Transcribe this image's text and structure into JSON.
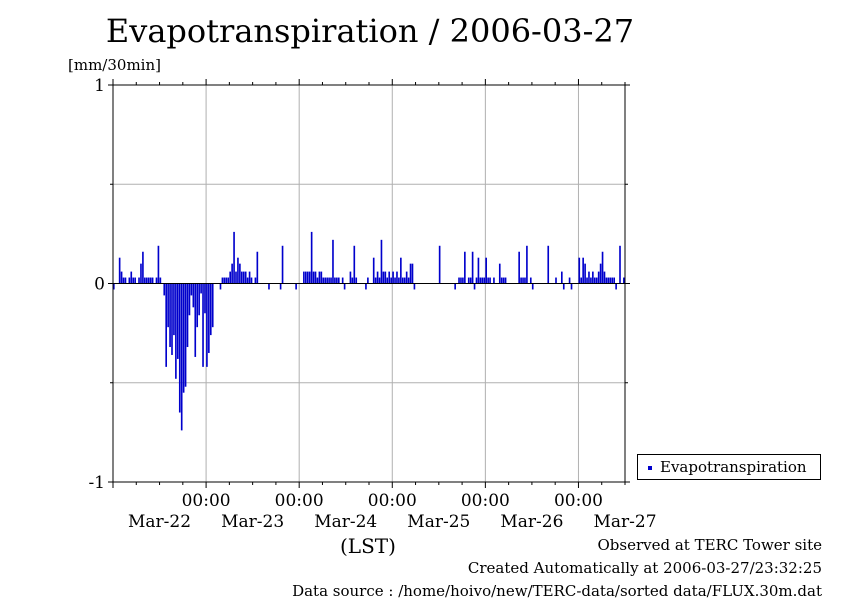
{
  "chart_data": {
    "type": "bar",
    "title": "Evapotranspiration / 2006-03-27",
    "ylabel": "[mm/30min]",
    "xlabel": "(LST)",
    "ylim": [
      -1,
      1
    ],
    "y_ticks": [
      "1",
      "0",
      "-1"
    ],
    "x_time_labels": [
      "00:00",
      "00:00",
      "00:00",
      "00:00",
      "00:00"
    ],
    "x_date_labels": [
      "Mar-22",
      "Mar-23",
      "Mar-24",
      "Mar-25",
      "Mar-26",
      "Mar-27"
    ],
    "grid": true,
    "legend_position": "right",
    "series": [
      {
        "name": "Evapotranspiration",
        "color": "#0000cc",
        "x_start": "2006-03-21 00:00",
        "interval_minutes": 30,
        "values": [
          -0.03,
          0,
          0,
          0.13,
          0.06,
          0.03,
          0.03,
          0,
          0.03,
          0.06,
          0.03,
          0.03,
          0,
          0.03,
          0.1,
          0.16,
          0.03,
          0.03,
          0.03,
          0.03,
          0.03,
          0,
          0.03,
          0.19,
          0.03,
          0,
          -0.06,
          -0.42,
          -0.22,
          -0.32,
          -0.36,
          -0.26,
          -0.48,
          -0.38,
          -0.65,
          -0.74,
          -0.55,
          -0.52,
          -0.32,
          -0.16,
          -0.06,
          -0.12,
          -0.37,
          -0.22,
          -0.16,
          -0.05,
          -0.42,
          -0.15,
          -0.42,
          -0.35,
          -0.26,
          -0.22,
          0,
          0,
          0,
          -0.03,
          0.03,
          0.03,
          0.03,
          0.03,
          0.06,
          0.1,
          0.26,
          0.06,
          0.13,
          0.1,
          0.06,
          0.06,
          0.06,
          0.03,
          0.06,
          0.03,
          0,
          0.03,
          0.16,
          0,
          0,
          0,
          0,
          0,
          -0.03,
          0,
          0,
          0,
          0,
          0,
          -0.03,
          0.19,
          0,
          0,
          0,
          0,
          0,
          0,
          -0.03,
          0,
          0,
          0,
          0.06,
          0.06,
          0.06,
          0.06,
          0.26,
          0.06,
          0.06,
          0.03,
          0.06,
          0.06,
          0.03,
          0.03,
          0.03,
          0.03,
          0.03,
          0.22,
          0.03,
          0.03,
          0.03,
          0,
          0.03,
          -0.03,
          0,
          0,
          0.06,
          0.03,
          0.19,
          0.03,
          0,
          0,
          0,
          0,
          -0.03,
          0.03,
          0,
          0,
          0.13,
          0.03,
          0.06,
          0.03,
          0.22,
          0.06,
          0.06,
          0.03,
          0.06,
          0.03,
          0.06,
          0.03,
          0.06,
          0.03,
          0.13,
          0.03,
          0.03,
          0.06,
          0.03,
          0.1,
          0.1,
          -0.03,
          0,
          0,
          0,
          0,
          0,
          0,
          0,
          0,
          0,
          0,
          0,
          0,
          0.19,
          0,
          0,
          0,
          0,
          0,
          0,
          0,
          -0.03,
          0,
          0.03,
          0.03,
          0.03,
          0.16,
          0,
          0.03,
          0.03,
          0.16,
          -0.03,
          0.03,
          0.13,
          0.03,
          0.03,
          0.03,
          0.13,
          0.03,
          0.03,
          0,
          0.03,
          0,
          0,
          0.1,
          0.03,
          0.03,
          0.03,
          0,
          0,
          0,
          0,
          0,
          0,
          0.16,
          0.03,
          0.03,
          0.03,
          0.19,
          0,
          0.03,
          -0.03,
          0,
          0,
          0,
          0,
          0,
          0,
          0,
          0.19,
          0,
          0,
          0,
          0.03,
          0,
          0,
          0.06,
          -0.03,
          0,
          0,
          0.03,
          -0.03,
          0,
          0,
          0,
          0.13,
          0.03,
          0.13,
          0.1,
          0.03,
          0.06,
          0.03,
          0.06,
          0.03,
          0.03,
          0.06,
          0.1,
          0.16,
          0.06,
          0.03,
          0.03,
          0.03,
          0.03,
          0.03,
          -0.03,
          0,
          0.19,
          0,
          0.03
        ]
      }
    ]
  },
  "footer": {
    "site": "Observed at TERC Tower site",
    "created": "Created Automatically at 2006-03-27/23:32:25",
    "source": "Data source : /home/hoivo/new/TERC-data/sorted  data/FLUX.30m.dat"
  }
}
